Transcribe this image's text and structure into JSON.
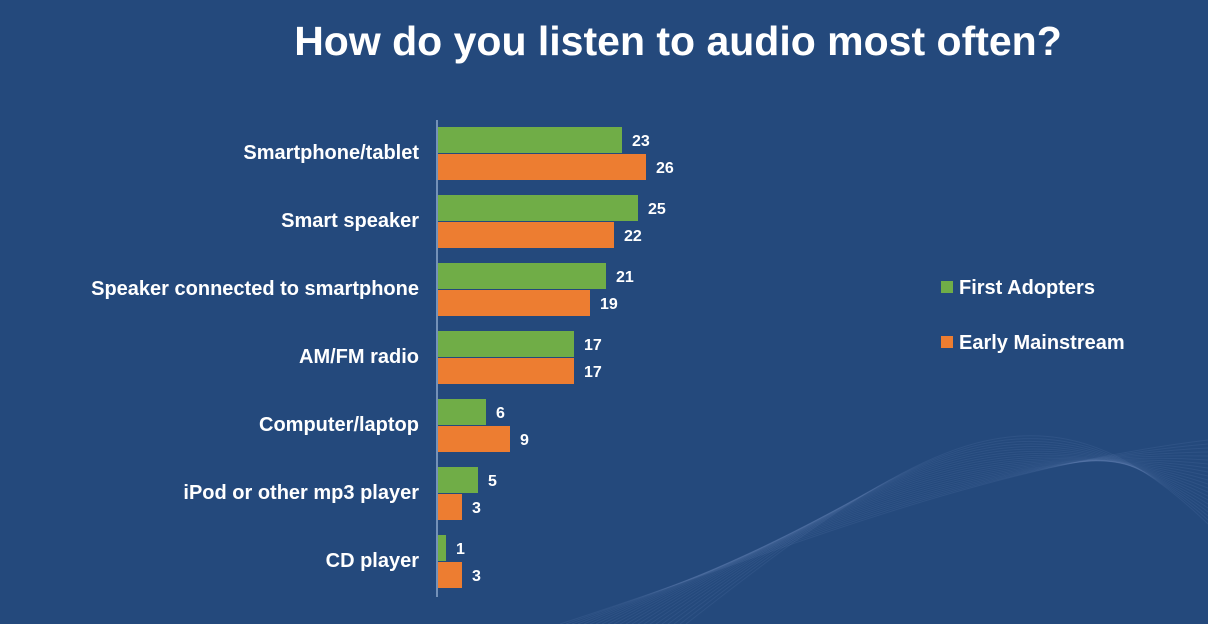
{
  "chart_data": {
    "type": "bar",
    "orientation": "horizontal",
    "title": "How do you listen to audio most often?",
    "categories": [
      "Smartphone/tablet",
      "Smart speaker",
      "Speaker connected to smartphone",
      "AM/FM radio",
      "Computer/laptop",
      "iPod or other mp3 player",
      "CD player"
    ],
    "series": [
      {
        "name": "First Adopters",
        "color": "#70ad47",
        "values": [
          23,
          25,
          21,
          17,
          6,
          5,
          1
        ]
      },
      {
        "name": "Early Mainstream",
        "color": "#ed7d31",
        "values": [
          26,
          22,
          19,
          17,
          9,
          3,
          3
        ]
      }
    ],
    "xlim": [
      0,
      30
    ],
    "grid": false,
    "legend": "right"
  },
  "background_color": "#24497c"
}
